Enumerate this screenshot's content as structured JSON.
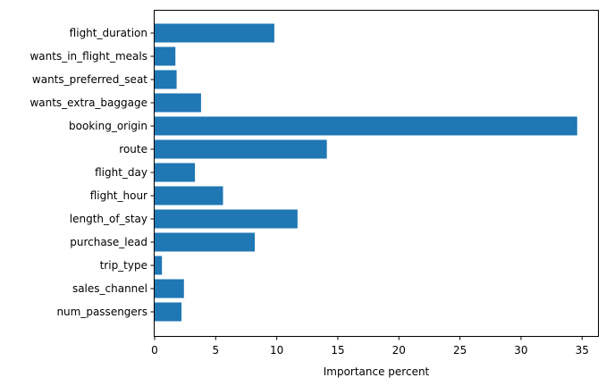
{
  "chart_data": {
    "type": "bar",
    "orientation": "horizontal",
    "categories": [
      "flight_duration",
      "wants_in_flight_meals",
      "wants_preferred_seat",
      "wants_extra_baggage",
      "booking_origin",
      "route",
      "flight_day",
      "flight_hour",
      "length_of_stay",
      "purchase_lead",
      "trip_type",
      "sales_channel",
      "num_passengers"
    ],
    "values": [
      9.8,
      1.7,
      1.8,
      3.8,
      34.6,
      14.1,
      3.3,
      5.6,
      11.7,
      8.2,
      0.6,
      2.4,
      2.2
    ],
    "xlabel": "Importance percent",
    "ylabel": "",
    "title": "",
    "xlim": [
      0,
      36.3
    ],
    "xticks": [
      0,
      5,
      10,
      15,
      20,
      25,
      30,
      35
    ],
    "bar_color": "#1f77b4",
    "grid": false
  }
}
